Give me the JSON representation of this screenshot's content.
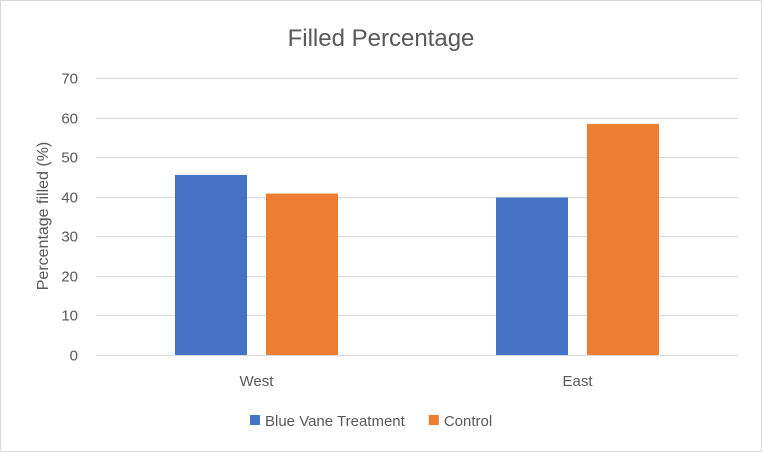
{
  "chart_data": {
    "type": "bar",
    "title": "Filled Percentage",
    "xlabel": "",
    "ylabel": "Percentage filled (%)",
    "categories": [
      "West",
      "East"
    ],
    "series": [
      {
        "name": "Blue Vane Treatment",
        "values": [
          45.5,
          39.8
        ],
        "color": "#4472c4"
      },
      {
        "name": "Control",
        "values": [
          40.8,
          58.4
        ],
        "color": "#ed7d31"
      }
    ],
    "ylim": [
      0,
      70
    ],
    "yticks": [
      0,
      10,
      20,
      30,
      40,
      50,
      60,
      70
    ],
    "grid": true,
    "legend_position": "bottom"
  }
}
